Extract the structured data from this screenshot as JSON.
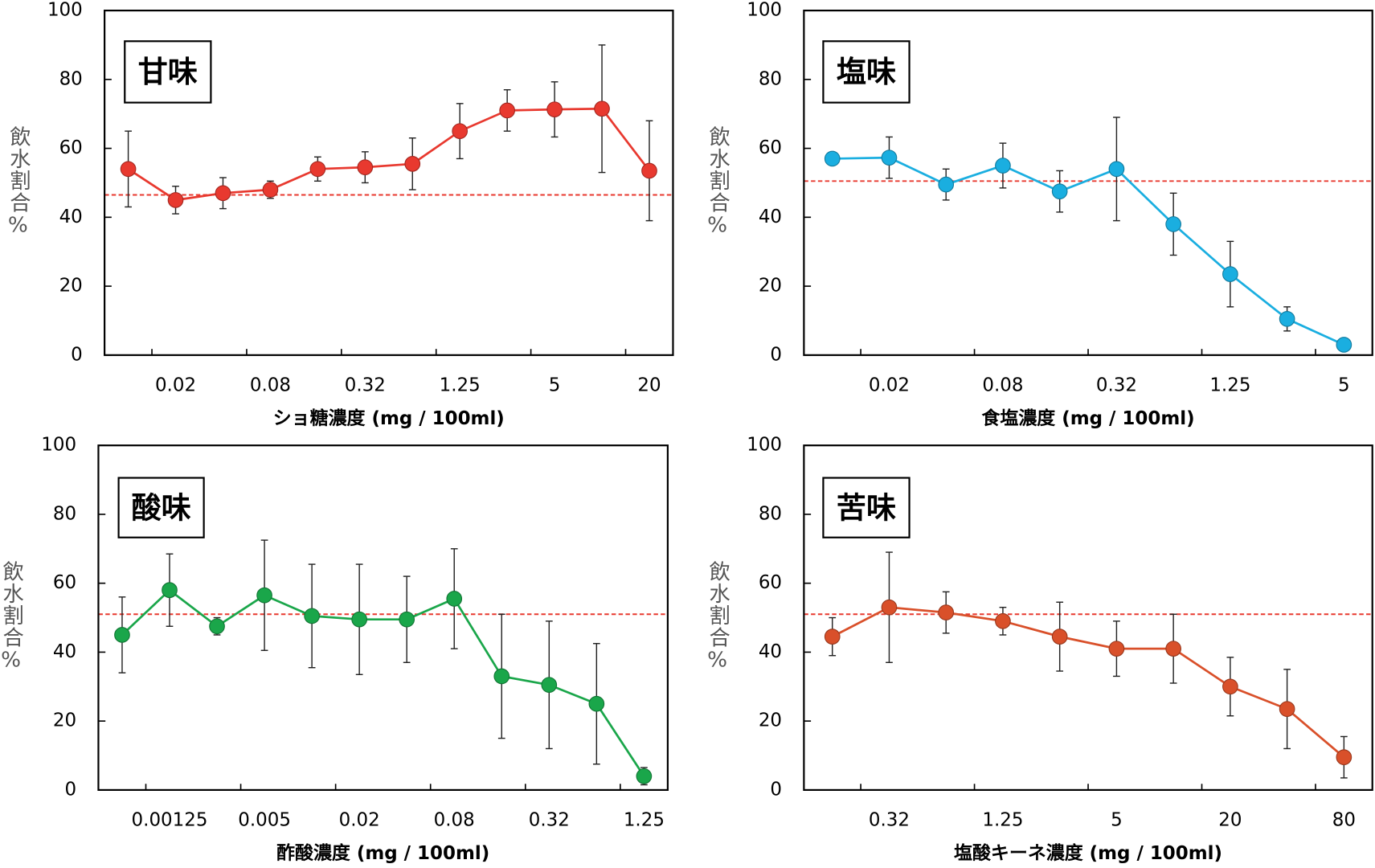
{
  "chart_data": [
    {
      "type": "line",
      "title": "甘味",
      "xlabel": "ショ糖濃度 (mg / 100ml)",
      "ylabel": "飲水割合%",
      "categories": [
        null,
        "0.02",
        null,
        "0.08",
        null,
        "0.32",
        null,
        "1.25",
        null,
        "5",
        null,
        "20"
      ],
      "series": [
        {
          "color": "#e8392f",
          "values": [
            54,
            45,
            47,
            48,
            54,
            54.5,
            55.5,
            65,
            71,
            71.3,
            71.5,
            53.5
          ],
          "errors": [
            11,
            4,
            4.5,
            2.5,
            3.5,
            4.5,
            7.5,
            8,
            6,
            8,
            18.5,
            14.5
          ]
        }
      ],
      "reference_line": 46.5,
      "reference_color": "#e8392f",
      "ylim": [
        0,
        100
      ],
      "yticks": [
        0,
        20,
        40,
        60,
        80,
        100
      ]
    },
    {
      "type": "line",
      "title": "塩味",
      "xlabel": "食塩濃度 (mg / 100ml)",
      "ylabel": "飲水割合%",
      "categories": [
        null,
        "0.02",
        null,
        "0.08",
        null,
        "0.32",
        null,
        "1.25",
        null,
        "5"
      ],
      "series": [
        {
          "color": "#1aaee0",
          "values": [
            57,
            57.3,
            49.5,
            55,
            47.5,
            54,
            38,
            23.5,
            10.5,
            3
          ],
          "errors": [
            1,
            6,
            4.5,
            6.5,
            6,
            15,
            9,
            9.5,
            3.5,
            0.5
          ]
        }
      ],
      "reference_line": 50.5,
      "reference_color": "#e8392f",
      "ylim": [
        0,
        100
      ],
      "yticks": [
        0,
        20,
        40,
        60,
        80,
        100
      ]
    },
    {
      "type": "line",
      "title": "酸味",
      "xlabel": "酢酸濃度 (mg / 100ml)",
      "ylabel": "飲水割合%",
      "categories": [
        null,
        "0.00125",
        null,
        "0.005",
        null,
        "0.02",
        null,
        "0.08",
        null,
        "0.32",
        null,
        "1.25"
      ],
      "series": [
        {
          "color": "#1aa64a",
          "values": [
            45,
            58,
            47.5,
            56.5,
            50.5,
            49.5,
            49.5,
            55.5,
            33,
            30.5,
            25,
            4
          ],
          "errors": [
            11,
            10.5,
            2.5,
            16,
            15,
            16,
            12.5,
            14.5,
            18,
            18.5,
            17.5,
            2.5
          ]
        }
      ],
      "reference_line": 51,
      "reference_color": "#e8392f",
      "ylim": [
        0,
        100
      ],
      "yticks": [
        0,
        20,
        40,
        60,
        80,
        100
      ]
    },
    {
      "type": "line",
      "title": "苦味",
      "xlabel": "塩酸キーネ濃度 (mg / 100ml)",
      "ylabel": "飲水割合%",
      "categories": [
        null,
        "0.32",
        null,
        "1.25",
        null,
        "5",
        null,
        "20",
        null,
        "80"
      ],
      "series": [
        {
          "color": "#d9502a",
          "values": [
            44.5,
            53,
            51.5,
            49,
            44.5,
            41,
            41,
            30,
            23.5,
            9.5
          ],
          "errors": [
            5.5,
            16,
            6,
            4,
            10,
            8,
            10,
            8.5,
            11.5,
            6
          ]
        }
      ],
      "reference_line": 51,
      "reference_color": "#e8392f",
      "ylim": [
        0,
        100
      ],
      "yticks": [
        0,
        20,
        40,
        60,
        80,
        100
      ]
    }
  ]
}
